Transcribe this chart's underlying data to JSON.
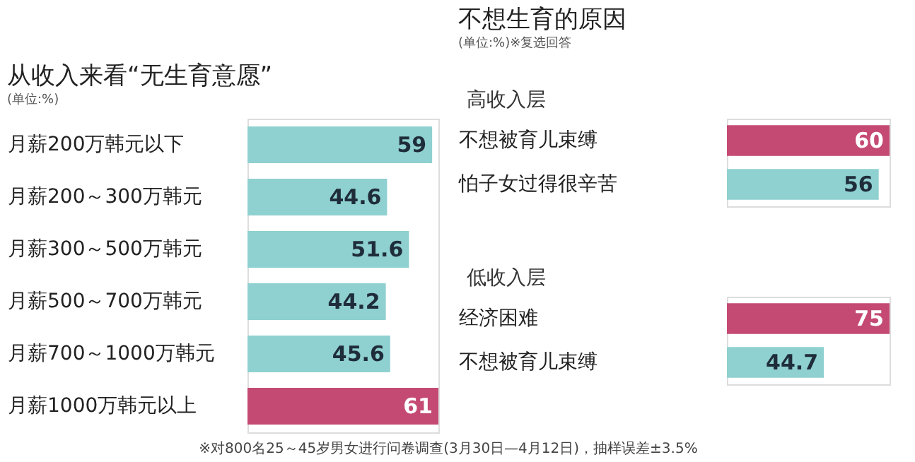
{
  "chart_data": [
    {
      "type": "bar",
      "orientation": "horizontal",
      "title": "从收入来看“无生育意愿”",
      "subtitle": "(单位:%)",
      "categories": [
        "月薪200万韩元以下",
        "月薪200～300万韩元",
        "月薪300～500万韩元",
        "月薪500～700万韩元",
        "月薪700～1000万韩元",
        "月薪1000万韩元以上"
      ],
      "values": [
        59,
        44.6,
        51.6,
        44.2,
        45.6,
        61
      ],
      "colors": [
        "#8fd0d0",
        "#8fd0d0",
        "#8fd0d0",
        "#8fd0d0",
        "#8fd0d0",
        "#c44a74"
      ],
      "data_labels": true,
      "tick_labels": "y",
      "annotations": [
        "※对800名25～45岁男女进行问卷调查(3月30日—4月12日)，抽样误差±3.5%"
      ]
    },
    {
      "type": "bar",
      "orientation": "horizontal",
      "title": "不想生育的原因",
      "subtitle": "(单位:%)※复选回答",
      "categories": [
        "不想被育儿束缚",
        "怕子女过得很辛苦"
      ],
      "values": [
        60,
        56
      ],
      "colors": [
        "#c44a74",
        "#8fd0d0"
      ],
      "data_labels": true,
      "tick_labels": "y",
      "annotations": [
        "高收入层"
      ]
    },
    {
      "type": "bar",
      "orientation": "horizontal",
      "categories": [
        "经济困难",
        "不想被育儿束缚"
      ],
      "values": [
        75,
        44.7
      ],
      "colors": [
        "#c44a74",
        "#8fd0d0"
      ],
      "data_labels": true,
      "tick_labels": "y",
      "annotations": [
        "低收入层"
      ]
    }
  ]
}
